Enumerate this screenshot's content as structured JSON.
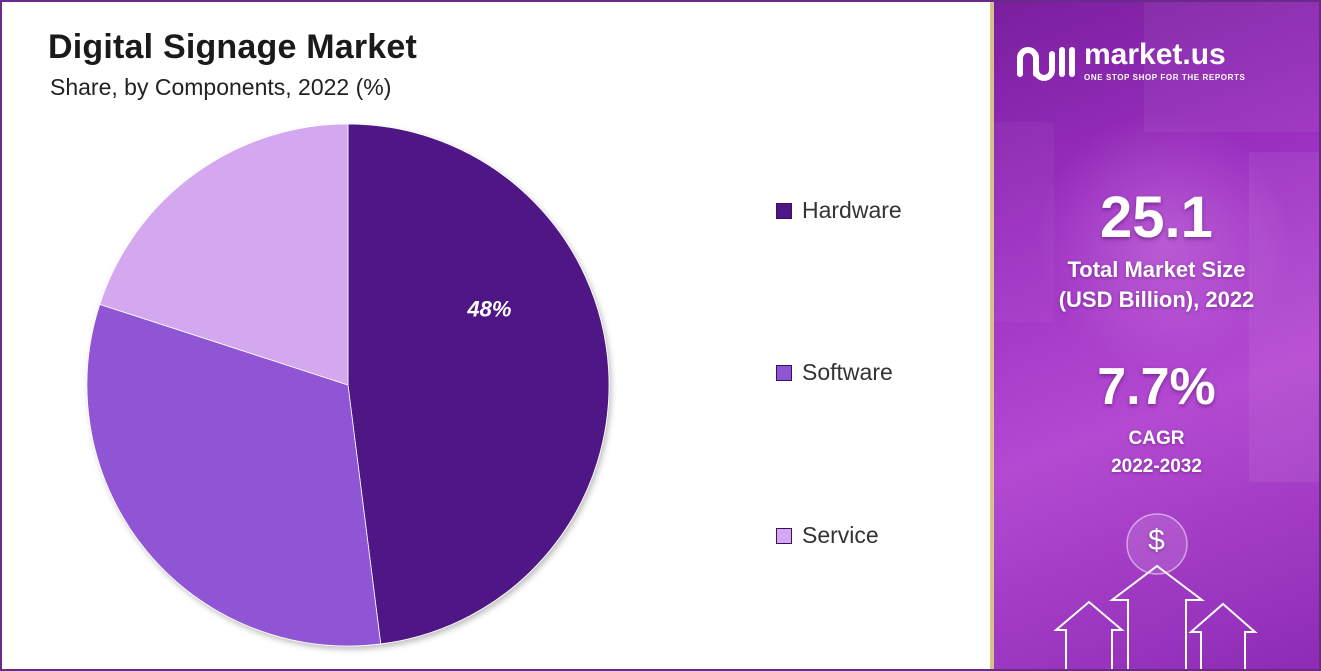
{
  "chart_data": {
    "type": "pie",
    "title": "Digital Signage Market",
    "subtitle": "Share, by Components, 2022 (%)",
    "categories": [
      "Hardware",
      "Software",
      "Service"
    ],
    "values": [
      48,
      32,
      20
    ],
    "data_labels": [
      "48%",
      "",
      ""
    ],
    "colors": [
      "#4f1485",
      "#8f55d4",
      "#d3a8ee"
    ],
    "legend_position": "right"
  },
  "side_panel": {
    "brand_name": "market.us",
    "brand_tagline": "ONE STOP SHOP FOR THE REPORTS",
    "market_size_value": "25.1",
    "market_size_label_line1": "Total Market Size",
    "market_size_label_line2": "(USD Billion), 2022",
    "cagr_value": "7.7%",
    "cagr_label_line1": "CAGR",
    "cagr_label_line2": "2022-2032",
    "dollar_symbol": "$",
    "icons": [
      "market-us-logo-icon",
      "dollar-coin-icon",
      "up-arrow-icon"
    ]
  }
}
